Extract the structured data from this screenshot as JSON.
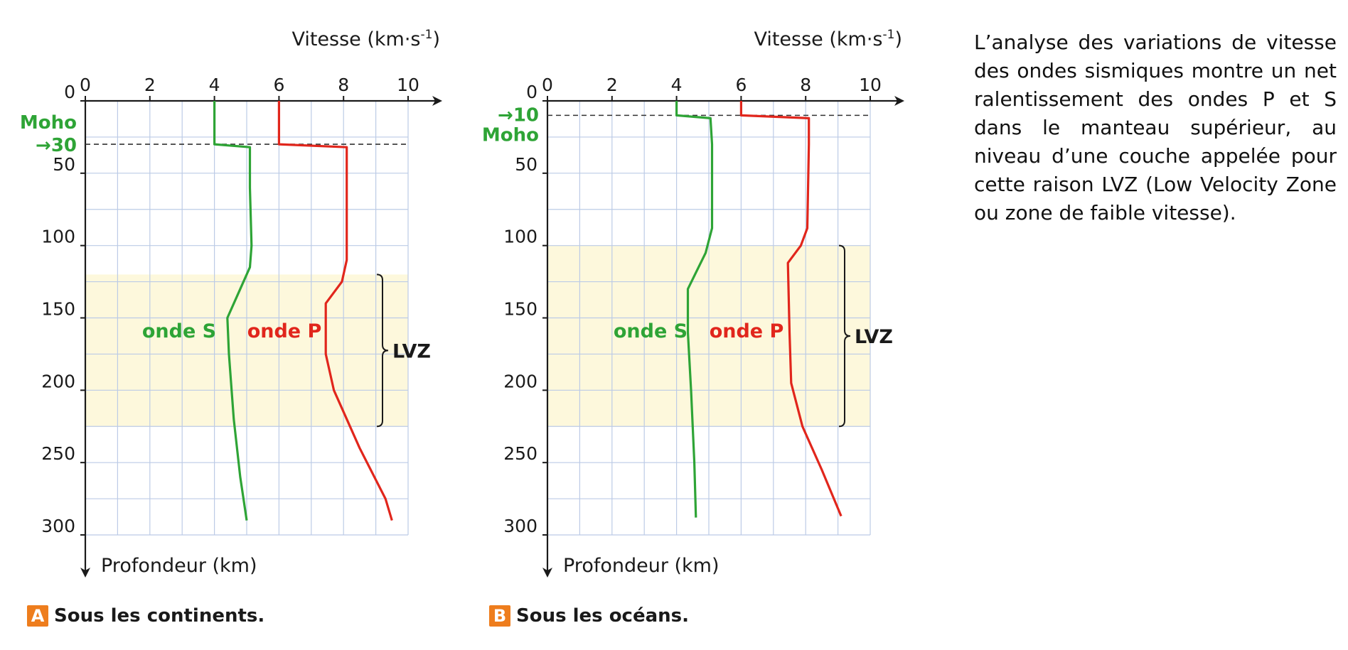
{
  "chart_data": [
    {
      "type": "line",
      "panel_letter": "A",
      "caption": "Sous les continents.",
      "xlabel": "Vitesse (km·s",
      "xlabel_sup": "-1",
      "xlabel_close": ")",
      "ylabel": "Profondeur (km)",
      "xlim": [
        0,
        10
      ],
      "ylim": [
        0,
        300
      ],
      "x_ticks": [
        "0",
        "2",
        "4",
        "6",
        "8",
        "10"
      ],
      "y_ticks": [
        "0",
        "50",
        "100",
        "150",
        "200",
        "250",
        "300"
      ],
      "grid": true,
      "moho": {
        "depth": 30,
        "label": "Moho",
        "value_label": "→30"
      },
      "lvz": {
        "top": 120,
        "bottom": 225,
        "label": "LVZ"
      },
      "series": [
        {
          "name": "onde S",
          "color": "#2ea436",
          "points": [
            [
              4.0,
              0
            ],
            [
              4.0,
              30
            ],
            [
              5.1,
              32
            ],
            [
              5.1,
              60
            ],
            [
              5.15,
              100
            ],
            [
              5.1,
              115
            ],
            [
              4.8,
              130
            ],
            [
              4.4,
              150
            ],
            [
              4.45,
              175
            ],
            [
              4.6,
              220
            ],
            [
              4.8,
              260
            ],
            [
              5.0,
              290
            ]
          ]
        },
        {
          "name": "onde P",
          "color": "#e1261c",
          "points": [
            [
              6.0,
              0
            ],
            [
              6.0,
              30
            ],
            [
              8.1,
              32
            ],
            [
              8.1,
              60
            ],
            [
              8.1,
              110
            ],
            [
              7.95,
              125
            ],
            [
              7.45,
              140
            ],
            [
              7.45,
              175
            ],
            [
              7.7,
              200
            ],
            [
              8.5,
              240
            ],
            [
              9.3,
              275
            ],
            [
              9.5,
              290
            ]
          ]
        }
      ]
    },
    {
      "type": "line",
      "panel_letter": "B",
      "caption": "Sous les océans.",
      "xlabel": "Vitesse (km·s",
      "xlabel_sup": "-1",
      "xlabel_close": ")",
      "ylabel": "Profondeur (km)",
      "xlim": [
        0,
        10
      ],
      "ylim": [
        0,
        300
      ],
      "x_ticks": [
        "0",
        "2",
        "4",
        "6",
        "8",
        "10"
      ],
      "y_ticks": [
        "0",
        "50",
        "100",
        "150",
        "200",
        "250",
        "300"
      ],
      "grid": true,
      "moho": {
        "depth": 10,
        "label": "Moho",
        "value_label": "→10"
      },
      "lvz": {
        "top": 100,
        "bottom": 225,
        "label": "LVZ"
      },
      "series": [
        {
          "name": "onde S",
          "color": "#2ea436",
          "points": [
            [
              4.0,
              0
            ],
            [
              4.0,
              10
            ],
            [
              5.05,
              12
            ],
            [
              5.1,
              30
            ],
            [
              5.1,
              88
            ],
            [
              4.9,
              105
            ],
            [
              4.35,
              130
            ],
            [
              4.35,
              160
            ],
            [
              4.45,
              200
            ],
            [
              4.55,
              250
            ],
            [
              4.6,
              288
            ]
          ]
        },
        {
          "name": "onde P",
          "color": "#e1261c",
          "points": [
            [
              6.0,
              0
            ],
            [
              6.0,
              10
            ],
            [
              8.1,
              12
            ],
            [
              8.1,
              30
            ],
            [
              8.05,
              88
            ],
            [
              7.85,
              100
            ],
            [
              7.45,
              112
            ],
            [
              7.5,
              160
            ],
            [
              7.55,
              195
            ],
            [
              7.9,
              225
            ],
            [
              8.5,
              255
            ],
            [
              9.1,
              287
            ]
          ]
        }
      ]
    }
  ],
  "side_text": "L’analyse des variations de vitesse des ondes sismiques montre un net ralentissement des ondes P et S dans le manteau supérieur, au niveau d’une couche appelée pour cette raison LVZ (Low Velocity Zone ou zone de faible vitesse)."
}
